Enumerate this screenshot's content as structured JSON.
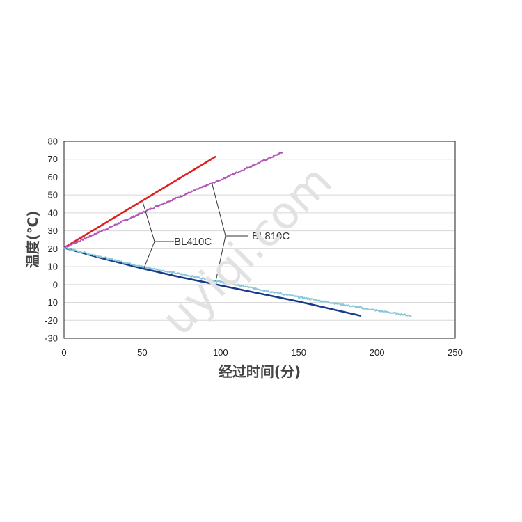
{
  "chart_data": {
    "type": "line",
    "xlabel": "经过时间(分)",
    "ylabel": "温度(℃)",
    "xlim": [
      0,
      250
    ],
    "ylim": [
      -30,
      80
    ],
    "xticks": [
      "0",
      "50",
      "100",
      "150",
      "200",
      "250"
    ],
    "yticks": [
      "80",
      "70",
      "60",
      "50",
      "40",
      "30",
      "20",
      "10",
      "0",
      "-10",
      "-20",
      "-30"
    ],
    "grid": true,
    "series": [
      {
        "color": "#e02020",
        "kind": "heat",
        "x": [
          0,
          97
        ],
        "y": [
          20.5,
          71.5
        ]
      },
      {
        "color": "#b055b8",
        "kind": "heat",
        "x": [
          0,
          60,
          100,
          140
        ],
        "y": [
          20.5,
          44,
          58.5,
          74
        ]
      },
      {
        "color": "#1a3a8c",
        "kind": "cool",
        "x": [
          0,
          25,
          50,
          75,
          100,
          125,
          150,
          175,
          190
        ],
        "y": [
          20.5,
          14.5,
          9,
          4,
          -0.5,
          -5,
          -9.5,
          -14.5,
          -17.5
        ]
      },
      {
        "color": "#88c8d8",
        "kind": "cool",
        "x": [
          0,
          50,
          100,
          150,
          200,
          222
        ],
        "y": [
          20.5,
          10,
          1.5,
          -7,
          -14.5,
          -17.5
        ]
      }
    ],
    "annotations": [
      {
        "text": "BL410C"
      },
      {
        "text": "BL810C"
      }
    ]
  },
  "watermark": "uyiqi.com"
}
